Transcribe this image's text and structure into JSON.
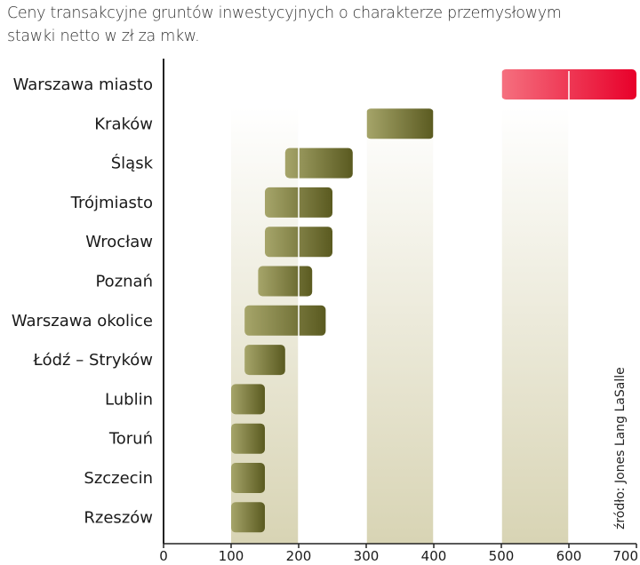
{
  "title_line1": "Ceny transakcyjne gruntów inwestycyjnych o charakterze przemysłowym",
  "title_line2": "stawki netto w zł za mkw.",
  "source": "źródło: Jones Lang LaSalle",
  "colors": {
    "range_bar_dark": "#5a5a20",
    "range_bar_light": "#a6a56a",
    "highlight_bar_dark": "#e8002a",
    "highlight_bar_light": "#f5707f",
    "band_fill": "#d8d4b4",
    "axis": "#222222"
  },
  "chart_data": {
    "type": "bar",
    "subtype": "floating-range",
    "orientation": "horizontal",
    "categories": [
      "Warszawa miasto",
      "Kraków",
      "Śląsk",
      "Trójmiasto",
      "Wrocław",
      "Poznań",
      "Warszawa okolice",
      "Łódź – Stryków",
      "Lublin",
      "Toruń",
      "Szczecin",
      "Rzeszów"
    ],
    "series": [
      {
        "min": [
          500,
          300,
          180,
          150,
          150,
          140,
          120,
          120,
          100,
          100,
          100,
          100
        ],
        "max": [
          700,
          400,
          280,
          250,
          250,
          220,
          240,
          180,
          150,
          150,
          150,
          150
        ]
      }
    ],
    "highlight_category": "Warszawa miasto",
    "xlim": [
      0,
      700
    ],
    "xticks": [
      0,
      100,
      200,
      300,
      400,
      500,
      600,
      700
    ],
    "shaded_bands": [
      [
        100,
        200
      ],
      [
        300,
        400
      ],
      [
        500,
        600
      ]
    ],
    "grid": false,
    "legend": "none"
  }
}
